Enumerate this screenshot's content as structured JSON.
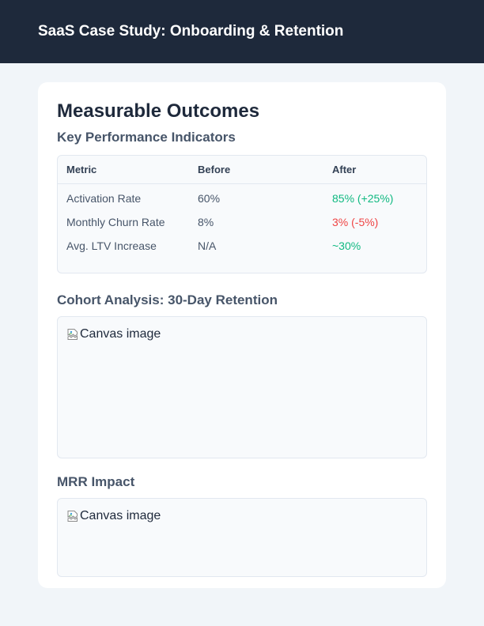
{
  "header": {
    "title": "SaaS Case Study: Onboarding & Retention"
  },
  "card": {
    "title": "Measurable Outcomes",
    "kpi_section": {
      "title": "Key Performance Indicators",
      "columns": [
        "Metric",
        "Before",
        "After"
      ],
      "rows": [
        {
          "metric": "Activation Rate",
          "before": "60%",
          "after": "85% (+25%)",
          "after_status": "positive"
        },
        {
          "metric": "Monthly Churn Rate",
          "before": "8%",
          "after": "3% (-5%)",
          "after_status": "negative"
        },
        {
          "metric": "Avg. LTV Increase",
          "before": "N/A",
          "after": "~30%",
          "after_status": "positive"
        }
      ]
    },
    "cohort_section": {
      "title": "Cohort Analysis: 30-Day Retention",
      "image_alt": "Canvas image"
    },
    "mrr_section": {
      "title": "MRR Impact",
      "image_alt": "Canvas image"
    }
  },
  "colors": {
    "header_bg": "#1e293b",
    "page_bg": "#f1f5f9",
    "positive": "#10b981",
    "negative": "#ef4444"
  },
  "icons": {
    "broken_image": "broken-image-icon"
  }
}
